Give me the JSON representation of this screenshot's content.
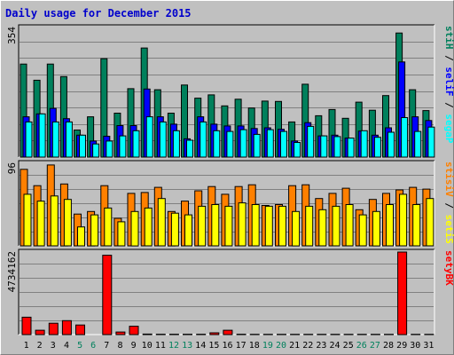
{
  "chart_data": {
    "type": "bar",
    "title": "Daily usage for December 2015",
    "categories": [
      "1",
      "2",
      "3",
      "4",
      "5",
      "6",
      "7",
      "8",
      "9",
      "10",
      "11",
      "12",
      "13",
      "14",
      "15",
      "16",
      "17",
      "18",
      "19",
      "20",
      "21",
      "22",
      "23",
      "24",
      "25",
      "26",
      "27",
      "28",
      "29",
      "30",
      "31"
    ],
    "weekend_days": [
      "5",
      "6",
      "12",
      "13",
      "19",
      "20",
      "26",
      "27"
    ],
    "panels": [
      {
        "id": "hits",
        "max_label": "354",
        "ymax": 354,
        "series": [
          {
            "name": "Hits",
            "color": "#00805c",
            "values": [
              254,
              210,
              254,
              220,
              74,
              110,
              269,
              120,
              187,
              298,
              184,
              120,
              197,
              161,
              170,
              140,
              158,
              134,
              153,
              152,
              96,
              199,
              113,
              130,
              106,
              150,
              128,
              168,
              339,
              184,
              127
            ]
          },
          {
            "name": "Files",
            "color": "#0000ff",
            "values": [
              110,
              118,
              133,
              105,
              60,
              44,
              57,
              86,
              86,
              186,
              110,
              90,
              50,
              110,
              90,
              85,
              85,
              78,
              80,
              76,
              44,
              94,
              58,
              60,
              52,
              71,
              60,
              80,
              260,
              110,
              100
            ]
          },
          {
            "name": "Pages",
            "color": "#00ffff",
            "values": [
              96,
              118,
              96,
              96,
              60,
              36,
              44,
              58,
              72,
              110,
              96,
              72,
              46,
              96,
              72,
              70,
              75,
              62,
              75,
              70,
              40,
              84,
              58,
              56,
              52,
              72,
              54,
              68,
              108,
              70,
              82
            ]
          }
        ],
        "legend": [
          {
            "name": "Pages",
            "color": "#00ffff"
          },
          {
            "name": "Files",
            "color": "#0000ff"
          },
          {
            "name": "Hits",
            "color": "#00805c"
          }
        ]
      },
      {
        "id": "visits",
        "max_label": "96",
        "ymax": 96,
        "series": [
          {
            "name": "Visits",
            "color": "#ff8000",
            "values": [
              89,
              70,
              94,
              72,
              37,
              40,
              70,
              32,
              61,
              62,
              68,
              40,
              52,
              64,
              69,
              60,
              69,
              71,
              47,
              48,
              70,
              71,
              55,
              61,
              67,
              42,
              54,
              61,
              65,
              68,
              66
            ]
          },
          {
            "name": "Sites",
            "color": "#ffff00",
            "values": [
              60,
              52,
              58,
              54,
              22,
              36,
              44,
              28,
              40,
              44,
              55,
              38,
              36,
              46,
              48,
              46,
              50,
              48,
              46,
              46,
              40,
              46,
              42,
              46,
              48,
              36,
              40,
              48,
              60,
              48,
              55
            ]
          }
        ],
        "legend": [
          {
            "name": "Sites",
            "color": "#ffff00"
          },
          {
            "name": "Visits",
            "color": "#ff8000"
          }
        ]
      },
      {
        "id": "kbytes",
        "max_label": "4734162",
        "ymax": 4734162,
        "series": [
          {
            "name": "KBytes",
            "color": "#ff0000",
            "values": [
              1000000,
              250000,
              650000,
              800000,
              550000,
              0,
              4550000,
              150000,
              480000,
              30000,
              20000,
              20000,
              20000,
              20000,
              100000,
              250000,
              20000,
              15000,
              15000,
              15000,
              15000,
              15000,
              15000,
              15000,
              15000,
              15000,
              15000,
              15000,
              4734162,
              15000,
              15000
            ]
          }
        ],
        "legend": [
          {
            "name": "KBytes",
            "color": "#ff0000"
          }
        ]
      }
    ],
    "colors": {
      "background": "#c0c0c0",
      "plot_background": "#c0c0c0",
      "title": "#0000cc",
      "axis_text": "#000000",
      "weekend_text": "#00805c",
      "grid": "#808080"
    }
  }
}
